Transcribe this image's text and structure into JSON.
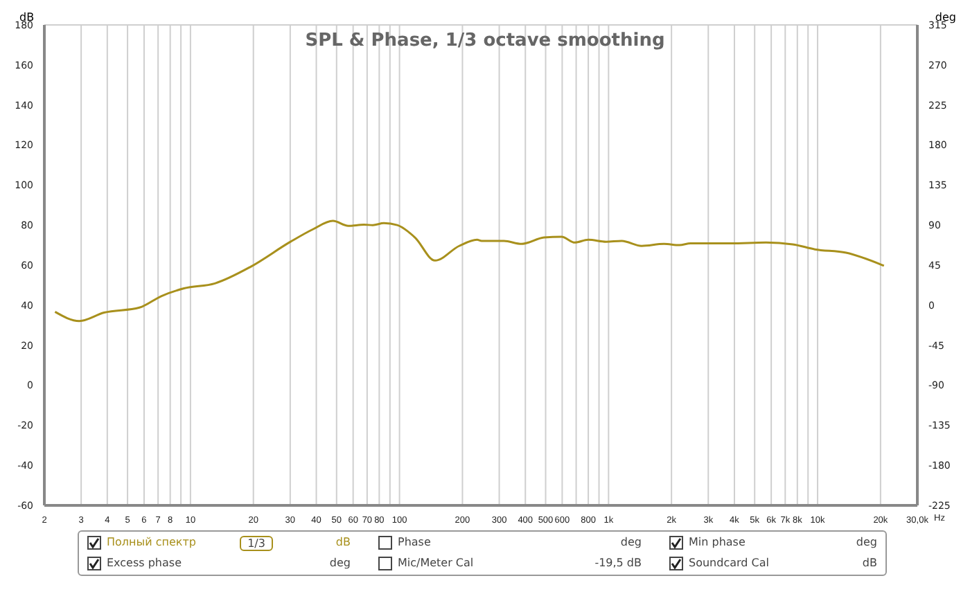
{
  "chart_data": {
    "type": "line",
    "title": "SPL & Phase, 1/3 octave smoothing",
    "xlabel": "Hz",
    "ylabel": "dB",
    "y2label": "deg",
    "log": "x",
    "grid": true,
    "legend": "bottom",
    "marker": "none",
    "line_style": "solid",
    "xlim": [
      2,
      30000
    ],
    "xticks": [
      2,
      3,
      4,
      5,
      6,
      7,
      8,
      {
        "value": 9,
        "label": null
      },
      10,
      20,
      30,
      40,
      50,
      60,
      70,
      80,
      {
        "value": 90,
        "label": null
      },
      100,
      200,
      300,
      400,
      500,
      600,
      {
        "value": 700,
        "label": null
      },
      800,
      {
        "value": 900,
        "label": null
      },
      {
        "value": 1000,
        "label": "1k"
      },
      {
        "value": 2000,
        "label": "2k"
      },
      {
        "value": 3000,
        "label": "3k"
      },
      {
        "value": 4000,
        "label": "4k"
      },
      {
        "value": 5000,
        "label": "5k"
      },
      {
        "value": 6000,
        "label": "6k"
      },
      {
        "value": 7000,
        "label": "7k"
      },
      {
        "value": 8000,
        "label": "8k"
      },
      {
        "value": 9000,
        "label": null
      },
      {
        "value": 10000,
        "label": "10k"
      },
      {
        "value": 20000,
        "label": "20k"
      },
      {
        "value": 30000,
        "label": "30,0k"
      }
    ],
    "ylim": [
      -60,
      180
    ],
    "yticks": [
      -60,
      -40,
      -20,
      0,
      20,
      40,
      60,
      80,
      100,
      120,
      140,
      160,
      180
    ],
    "y2lim": [
      -225,
      315
    ],
    "y2ticks": [
      -225,
      -180,
      -135,
      -90,
      -45,
      0,
      45,
      90,
      135,
      180,
      225,
      270,
      315
    ],
    "x": [
      2.25,
      2.94,
      3.86,
      5.7,
      7.28,
      9.31,
      13.1,
      19.4,
      30.1,
      38.5,
      48,
      56.9,
      67.6,
      74.5,
      84.2,
      97.5,
      118.6,
      147.9,
      193,
      235,
      247,
      316,
      384,
      491,
      596,
      690,
      800,
      973,
      1156,
      1439,
      1841,
      2183,
      2468,
      3835,
      5667,
      7604,
      9710,
      13680,
      20760
    ],
    "series": [
      {
        "name": "Полный спектр",
        "color": "#a8901c",
        "values": [
          36.7,
          32.1,
          36.3,
          38.8,
          44.6,
          48.4,
          50.9,
          59.2,
          71.7,
          77.9,
          82.1,
          79.6,
          80.2,
          80,
          81,
          80,
          73.8,
          62.3,
          69.6,
          72.7,
          72.1,
          72.1,
          70.6,
          73.8,
          74.2,
          71.3,
          72.7,
          71.7,
          72.1,
          69.6,
          70.6,
          70,
          70.9,
          70.9,
          71.3,
          70.4,
          67.9,
          66.2,
          59.7
        ]
      }
    ],
    "annotations": [
      "1/3",
      "dB",
      "Phase",
      "deg",
      "Min phase",
      "deg",
      "Excess phase",
      "deg",
      "Mic/Meter Cal",
      "-19,5 dB",
      "Soundcard Cal",
      "dB"
    ]
  }
}
